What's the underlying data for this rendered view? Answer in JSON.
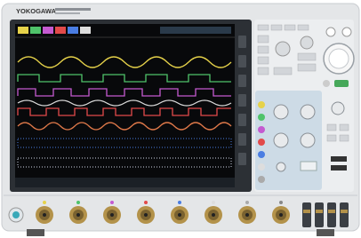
{
  "brand": "YOKOGAWA"
}
